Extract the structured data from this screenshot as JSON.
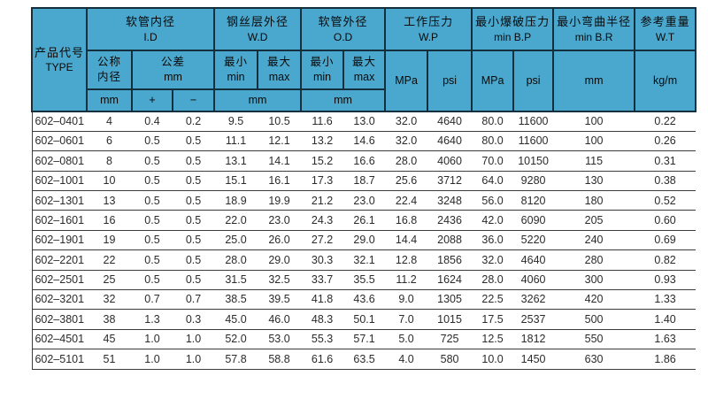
{
  "colors": {
    "header_bg": "#4AA7CD",
    "header_border": "#142F3D",
    "row_line": "#3C3C3C",
    "data_text": "#2B2B2B",
    "header_text": "#0A0A0A",
    "page_bg": "#FFFFFF"
  },
  "header": {
    "type": {
      "zh": "产品代号",
      "en": "TYPE"
    },
    "groups": {
      "id": {
        "zh": "软管内径",
        "en": "I.D"
      },
      "wd": {
        "zh": "钢丝层外径",
        "en": "W.D"
      },
      "od": {
        "zh": "软管外径",
        "en": "O.D"
      },
      "wp": {
        "zh": "工作压力",
        "en": "W.P"
      },
      "bp": {
        "zh": "最小爆破压力",
        "en": "min B.P"
      },
      "br": {
        "zh": "最小弯曲半径",
        "en": "min B.R"
      },
      "wt": {
        "zh": "参考重量",
        "en": "W.T"
      }
    },
    "sub": {
      "nominal": {
        "line1": "公称",
        "line2": "内径"
      },
      "tolerance": {
        "line1": "公差",
        "line2": "mm"
      },
      "min": {
        "zh": "最小",
        "en": "min"
      },
      "max": {
        "zh": "最大",
        "en": "max"
      }
    },
    "units": {
      "mm": "mm",
      "plus": "+",
      "minus": "−",
      "mpa": "MPa",
      "psi": "psi",
      "kg_per_m": "kg/m"
    }
  },
  "columns": [
    "type",
    "id_nominal_mm",
    "tol_plus",
    "tol_minus",
    "wd_min",
    "wd_max",
    "od_min",
    "od_max",
    "wp_mpa",
    "wp_psi",
    "bp_mpa",
    "bp_psi",
    "br_mm",
    "wt_kgm"
  ],
  "rows": [
    [
      "602–0401",
      "4",
      "0.4",
      "0.2",
      "9.5",
      "10.5",
      "11.6",
      "13.0",
      "32.0",
      "4640",
      "80.0",
      "11600",
      "100",
      "0.22"
    ],
    [
      "602–0601",
      "6",
      "0.5",
      "0.5",
      "11.1",
      "12.1",
      "13.2",
      "14.6",
      "32.0",
      "4640",
      "80.0",
      "11600",
      "100",
      "0.26"
    ],
    [
      "602–0801",
      "8",
      "0.5",
      "0.5",
      "13.1",
      "14.1",
      "15.2",
      "16.6",
      "28.0",
      "4060",
      "70.0",
      "10150",
      "115",
      "0.31"
    ],
    [
      "602–1001",
      "10",
      "0.5",
      "0.5",
      "15.1",
      "16.1",
      "17.3",
      "18.7",
      "25.6",
      "3712",
      "64.0",
      "9280",
      "130",
      "0.38"
    ],
    [
      "602–1301",
      "13",
      "0.5",
      "0.5",
      "18.9",
      "19.9",
      "21.2",
      "23.0",
      "22.4",
      "3248",
      "56.0",
      "8120",
      "180",
      "0.52"
    ],
    [
      "602–1601",
      "16",
      "0.5",
      "0.5",
      "22.0",
      "23.0",
      "24.3",
      "26.1",
      "16.8",
      "2436",
      "42.0",
      "6090",
      "205",
      "0.60"
    ],
    [
      "602–1901",
      "19",
      "0.5",
      "0.5",
      "25.0",
      "26.0",
      "27.2",
      "29.0",
      "14.4",
      "2088",
      "36.0",
      "5220",
      "240",
      "0.69"
    ],
    [
      "602–2201",
      "22",
      "0.5",
      "0.5",
      "28.0",
      "29.0",
      "30.3",
      "32.1",
      "12.8",
      "1856",
      "32.0",
      "4640",
      "280",
      "0.82"
    ],
    [
      "602–2501",
      "25",
      "0.5",
      "0.5",
      "31.5",
      "32.5",
      "33.7",
      "35.5",
      "11.2",
      "1624",
      "28.0",
      "4060",
      "300",
      "0.93"
    ],
    [
      "602–3201",
      "32",
      "0.7",
      "0.7",
      "38.5",
      "39.5",
      "41.8",
      "43.6",
      "9.0",
      "1305",
      "22.5",
      "3262",
      "420",
      "1.33"
    ],
    [
      "602–3801",
      "38",
      "1.3",
      "0.3",
      "45.0",
      "46.0",
      "48.3",
      "50.1",
      "7.0",
      "1015",
      "17.5",
      "2537",
      "500",
      "1.40"
    ],
    [
      "602–4501",
      "45",
      "1.0",
      "1.0",
      "52.0",
      "53.0",
      "55.3",
      "57.1",
      "5.0",
      "725",
      "12.5",
      "1812",
      "550",
      "1.63"
    ],
    [
      "602–5101",
      "51",
      "1.0",
      "1.0",
      "57.8",
      "58.8",
      "61.6",
      "63.5",
      "4.0",
      "580",
      "10.0",
      "1450",
      "630",
      "1.86"
    ]
  ]
}
